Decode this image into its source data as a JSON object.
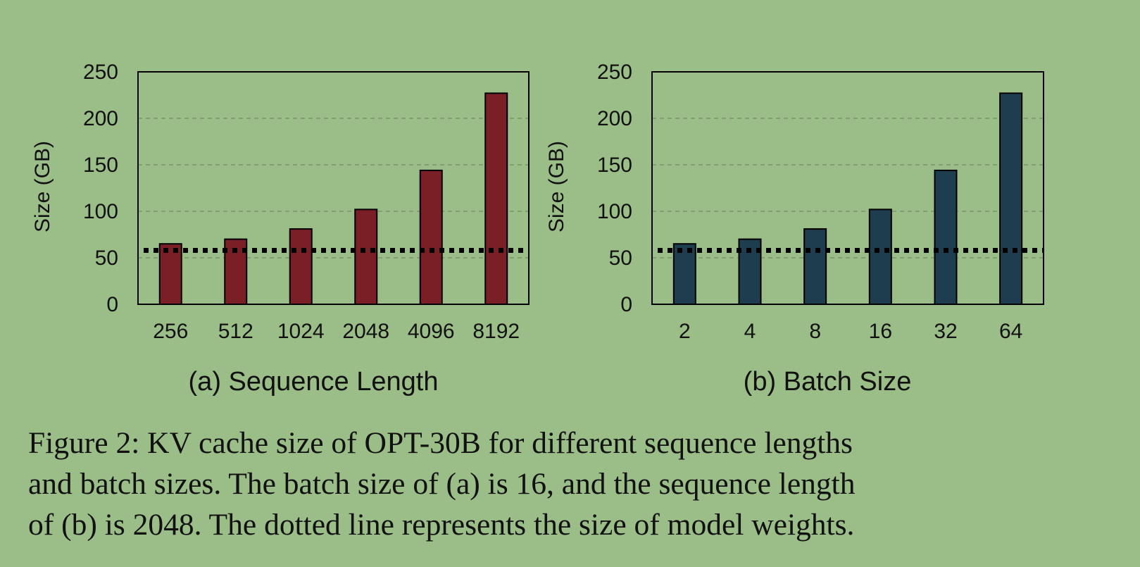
{
  "chart_data": [
    {
      "type": "bar",
      "subcaption": "(a) Sequence Length",
      "xlabel": "",
      "ylabel": "Size (GB)",
      "categories": [
        "256",
        "512",
        "1024",
        "2048",
        "4096",
        "8192"
      ],
      "values": [
        65,
        70,
        81,
        102,
        144,
        227
      ],
      "ylim": [
        0,
        250
      ],
      "yticks": [
        "0",
        "50",
        "100",
        "150",
        "200",
        "250"
      ],
      "grid": "horizontal dashed",
      "bar_color": "#7b1f27",
      "reference_line": {
        "value": 58,
        "style": "dotted",
        "color": "#000000"
      }
    },
    {
      "type": "bar",
      "subcaption": "(b) Batch Size",
      "xlabel": "",
      "ylabel": "Size (GB)",
      "categories": [
        "2",
        "4",
        "8",
        "16",
        "32",
        "64"
      ],
      "values": [
        65,
        70,
        81,
        102,
        144,
        227
      ],
      "ylim": [
        0,
        250
      ],
      "yticks": [
        "0",
        "50",
        "100",
        "150",
        "200",
        "250"
      ],
      "grid": "horizontal dashed",
      "bar_color": "#1e3d4f",
      "reference_line": {
        "value": 58,
        "style": "dotted",
        "color": "#000000"
      }
    }
  ],
  "caption": {
    "lines": [
      "Figure 2: KV cache size of OPT-30B for different sequence lengths",
      "and batch sizes. The batch size of (a) is 16, and the sequence length",
      "of (b) is 2048. The dotted line represents the size of model weights."
    ]
  },
  "colors": {
    "background": "#9bbd88",
    "grid": "#6f8f64"
  }
}
